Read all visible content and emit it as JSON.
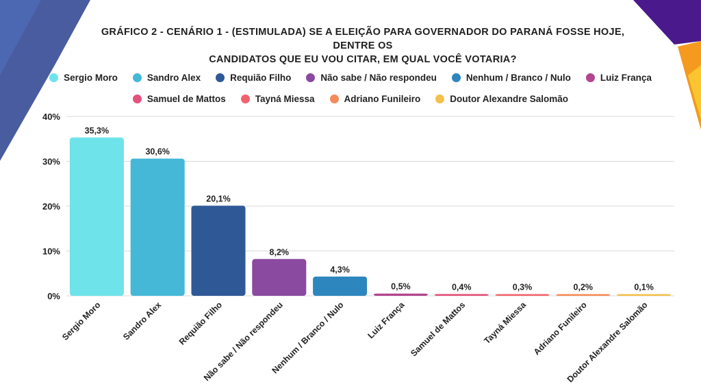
{
  "title_line1": "GRÁFICO 2 - CENÁRIO 1 - (ESTIMULADA) SE A ELEIÇÃO PARA GOVERNADOR DO PARANÁ FOSSE HOJE, DENTRE OS",
  "title_line2": "CANDIDATOS QUE EU VOU CITAR, EM QUAL VOCÊ VOTARIA?",
  "colors": {
    "deco_dark": "#2a3f8f",
    "deco_purple": "#4a1a8c",
    "deco_orange": "#f59a1e",
    "deco_yellow": "#fbc531",
    "gridline": "#d9d9d9"
  },
  "legend": [
    {
      "label": "Sergio Moro",
      "color": "#6fe3ea"
    },
    {
      "label": "Sandro Alex",
      "color": "#45b8d8"
    },
    {
      "label": "Requião Filho",
      "color": "#2f5896"
    },
    {
      "label": "Não sabe / Não respondeu",
      "color": "#8a4aa0"
    },
    {
      "label": "Nenhum / Branco / Nulo",
      "color": "#2e86be"
    },
    {
      "label": "Luiz França",
      "color": "#b2458f"
    },
    {
      "label": "Samuel de Mattos",
      "color": "#e3527a"
    },
    {
      "label": "Tayná Miessa",
      "color": "#f2626c"
    },
    {
      "label": "Adriano Funileiro",
      "color": "#f58b5a"
    },
    {
      "label": "Doutor Alexandre Salomão",
      "color": "#f5c04a"
    }
  ],
  "chart_data": {
    "type": "bar",
    "title": "GRÁFICO 2 - CENÁRIO 1 - (ESTIMULADA) SE A ELEIÇÃO PARA GOVERNADOR DO PARANÁ FOSSE HOJE, DENTRE OS CANDIDATOS QUE EU VOU CITAR, EM QUAL VOCÊ VOTARIA?",
    "categories": [
      "Sergio Moro",
      "Sandro Alex",
      "Requião Filho",
      "Não sabe / Não respondeu",
      "Nenhum / Branco / Nulo",
      "Luiz França",
      "Samuel de Mattos",
      "Tayná Miessa",
      "Adriano Funileiro",
      "Doutor Alexandre Salomão"
    ],
    "values": [
      35.3,
      30.6,
      20.1,
      8.2,
      4.3,
      0.5,
      0.4,
      0.3,
      0.2,
      0.1
    ],
    "value_labels": [
      "35,3%",
      "30,6%",
      "20,1%",
      "8,2%",
      "4,3%",
      "0,5%",
      "0,4%",
      "0,3%",
      "0,2%",
      "0,1%"
    ],
    "colors": [
      "#6fe3ea",
      "#45b8d8",
      "#2f5896",
      "#8a4aa0",
      "#2e86be",
      "#b2458f",
      "#e3527a",
      "#f2626c",
      "#f58b5a",
      "#f5c04a"
    ],
    "yticks": [
      0,
      10,
      20,
      30,
      40
    ],
    "ytick_labels": [
      "0%",
      "10%",
      "20%",
      "30%",
      "40%"
    ],
    "ylim": [
      0,
      40
    ],
    "xlabel": "",
    "ylabel": "",
    "grid": true,
    "legend_position": "top"
  }
}
